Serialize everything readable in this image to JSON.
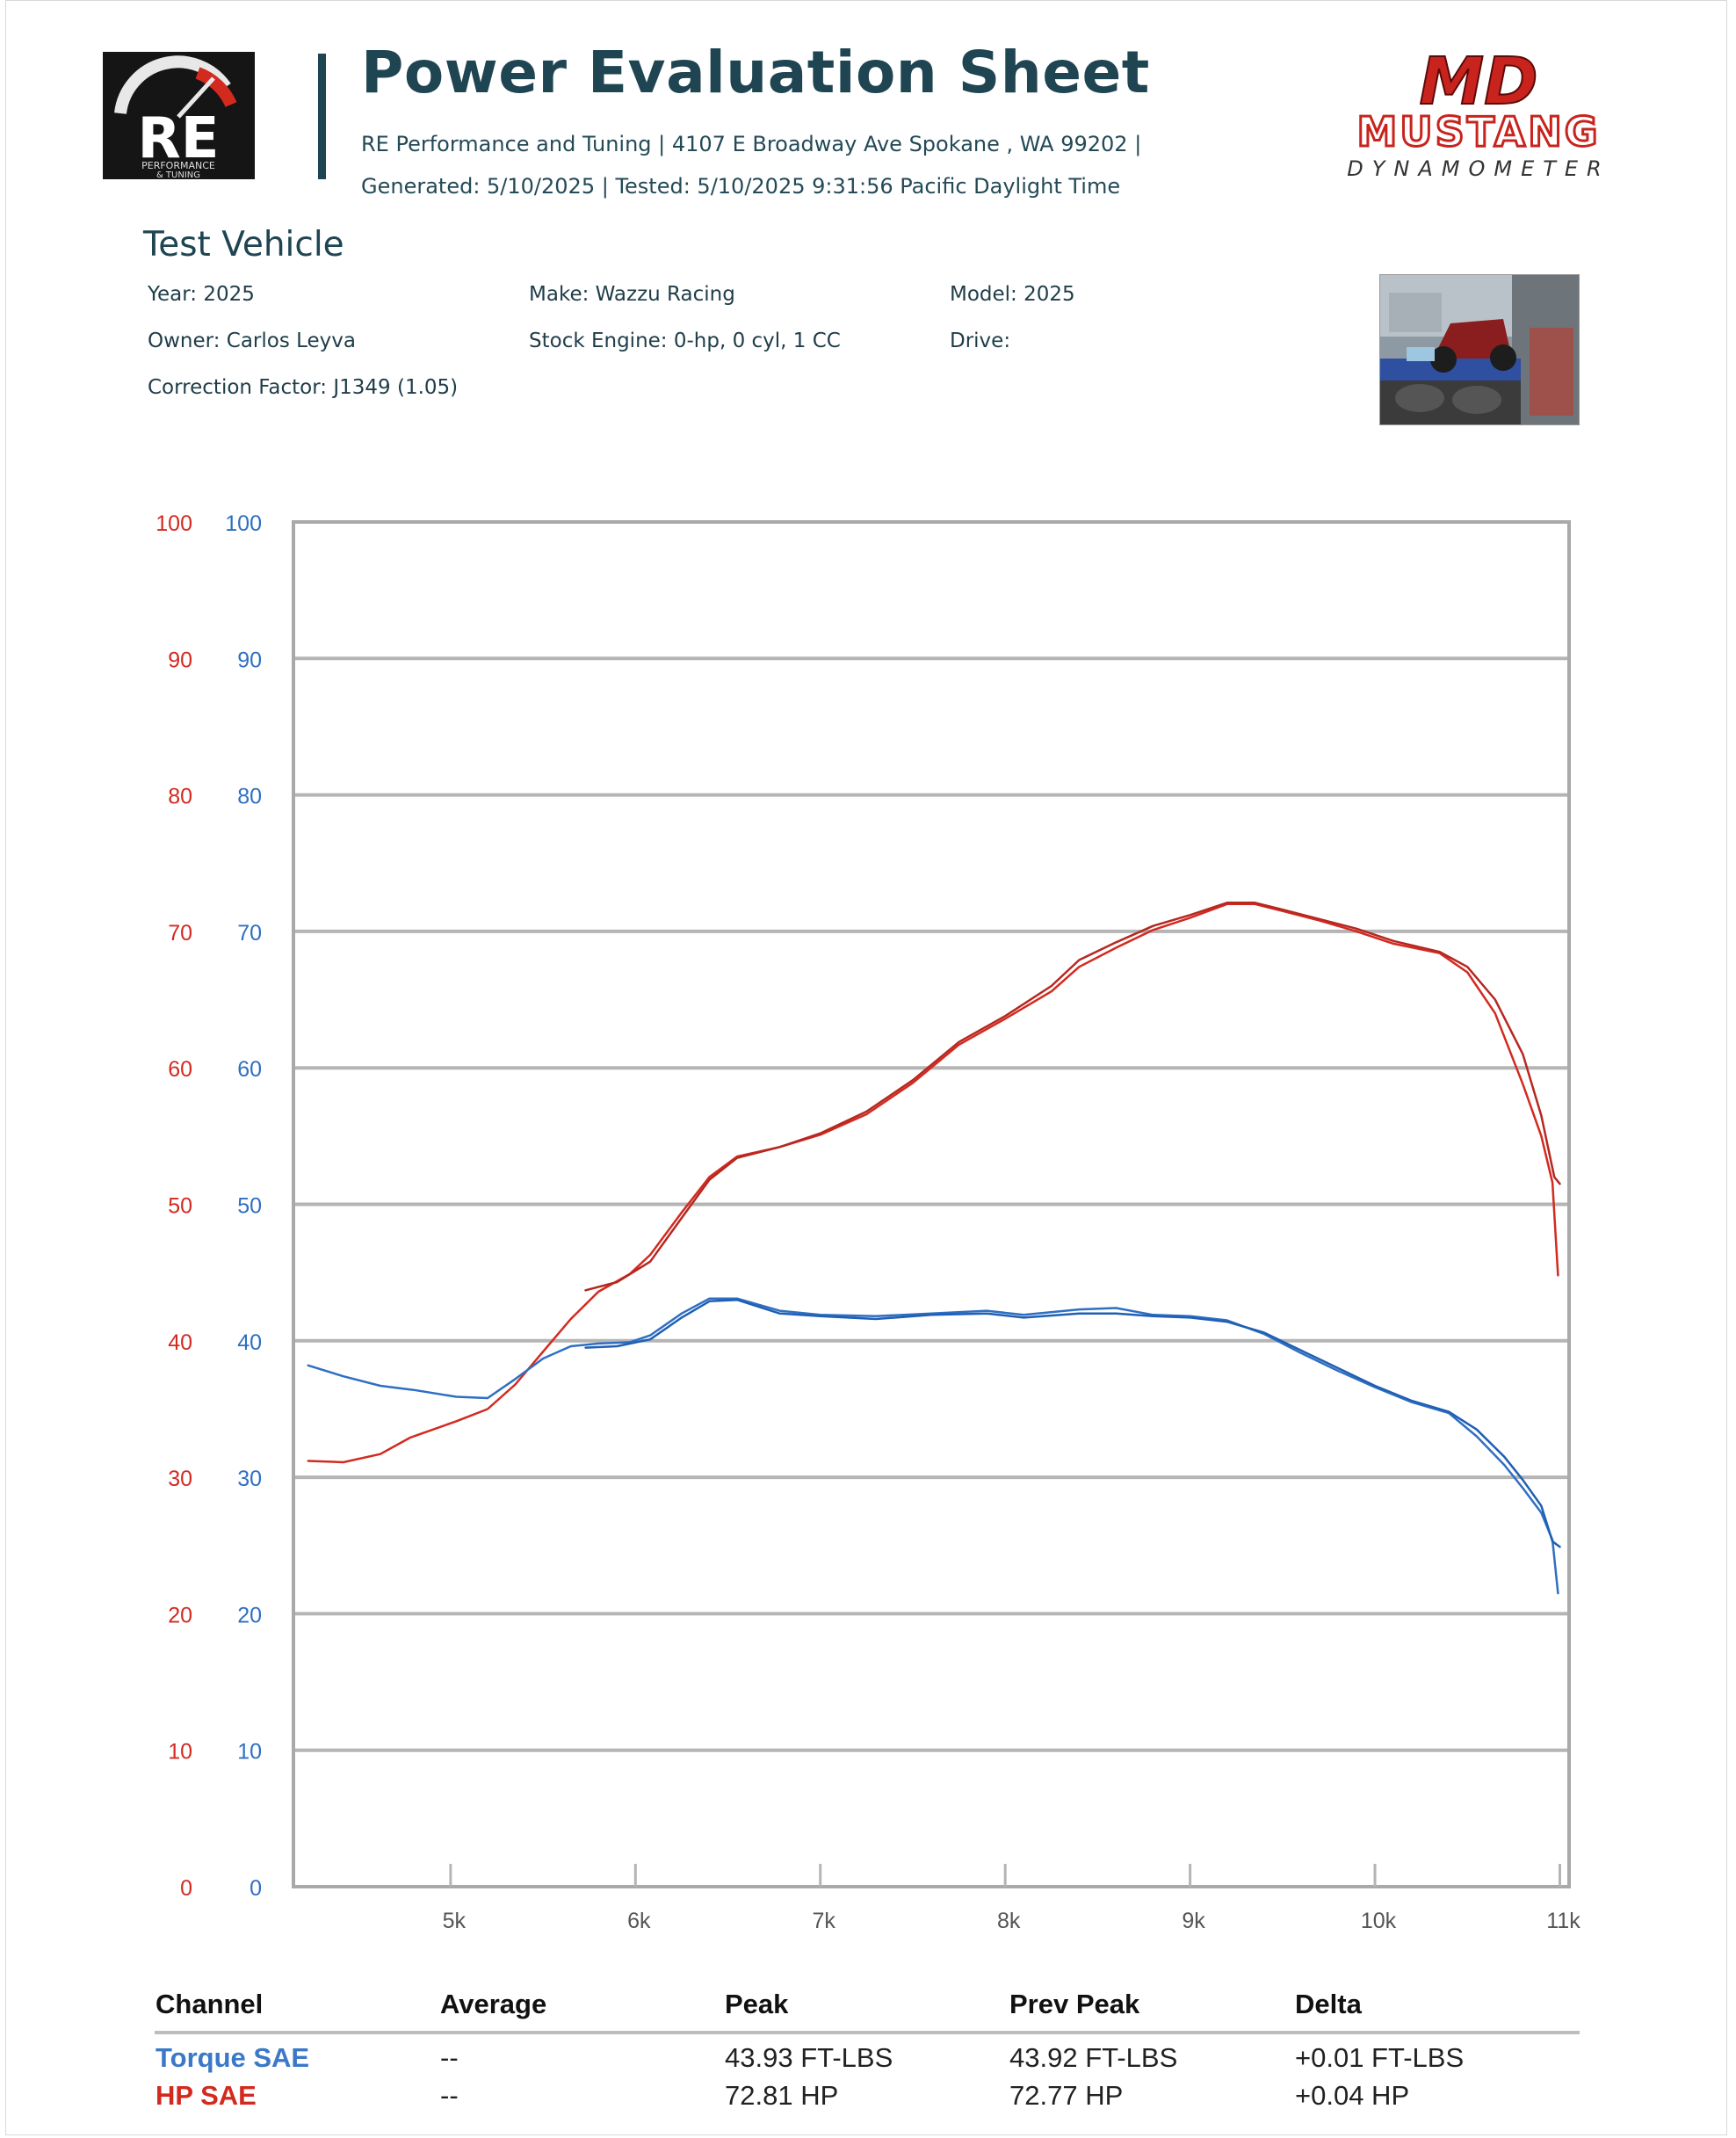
{
  "header": {
    "title": "Power Evaluation Sheet",
    "subtitle": "RE Performance and Tuning | 4107 E Broadway Ave Spokane , WA 99202 | Generated: 5/10/2025 | Tested: 5/10/2025 9:31:56 Pacific Daylight Time",
    "re_logo": {
      "text": "RE",
      "tagline_1": "PERFORMANCE",
      "tagline_2": "& TUNING",
      "icon": "gauge-icon"
    },
    "dyno_logo": {
      "mark": "MD",
      "name": "MUSTANG",
      "sub": "DYNAMOMETER"
    }
  },
  "vehicle": {
    "section_title": "Test Vehicle",
    "year": "Year: 2025",
    "make": "Make: Wazzu Racing",
    "model": "Model: 2025",
    "owner": "Owner: Carlos Leyva",
    "engine": "Stock Engine: 0-hp, 0 cyl, 1 CC",
    "drive": "Drive:",
    "correction": "Correction Factor: J1349 (1.05)",
    "photo_icon": "race-car-on-dyno-photo"
  },
  "colors": {
    "hp": "#d32a20",
    "torque": "#2f6fc2",
    "title": "#1f4552",
    "grid": "#b5b5b5"
  },
  "chart_data": {
    "type": "line",
    "title": "",
    "xlabel": "",
    "ylabel": "",
    "xlim": [
      4150,
      11050
    ],
    "ylim": [
      0,
      100
    ],
    "grid": true,
    "x_ticks": [
      5000,
      6000,
      7000,
      8000,
      9000,
      10000,
      11000
    ],
    "x_tick_labels": [
      "5k",
      "6k",
      "7k",
      "8k",
      "9k",
      "10k",
      "11k"
    ],
    "y_ticks_left_hp": [
      "0",
      "10",
      "20",
      "30",
      "40",
      "50",
      "60",
      "70",
      "80",
      "90",
      "100"
    ],
    "y_ticks_left_torque": [
      "0",
      "10",
      "20",
      "30",
      "40",
      "50",
      "60",
      "70",
      "80",
      "90",
      "100"
    ],
    "series": [
      {
        "name": "HP SAE",
        "color": "#d32a20",
        "x": [
          4230,
          4420,
          4620,
          4780,
          5030,
          5200,
          5350,
          5500,
          5650,
          5800,
          5970,
          6080,
          6250,
          6400,
          6550,
          6780,
          7000,
          7250,
          7500,
          7750,
          8000,
          8250,
          8400,
          8600,
          8800,
          9000,
          9200,
          9350,
          9500,
          9700,
          9900,
          10100,
          10350,
          10500,
          10650,
          10800,
          10900,
          10960,
          10990
        ],
        "values": [
          31.2,
          31.1,
          31.7,
          32.9,
          34.1,
          35.0,
          36.8,
          39.2,
          41.6,
          43.6,
          44.9,
          46.3,
          49.4,
          52.0,
          53.5,
          54.2,
          55.1,
          56.6,
          58.9,
          61.7,
          63.6,
          65.6,
          67.4,
          68.8,
          70.1,
          71.0,
          72.0,
          72.0,
          71.5,
          70.8,
          70.0,
          69.1,
          68.4,
          67.0,
          64.0,
          58.8,
          55.0,
          51.6,
          44.8
        ]
      },
      {
        "name": "HP SAE (prev)",
        "color": "#b52820",
        "x": [
          5730,
          5900,
          6080,
          6250,
          6400,
          6550,
          6780,
          7000,
          7250,
          7500,
          7750,
          8000,
          8250,
          8400,
          8600,
          8800,
          9000,
          9200,
          9350,
          9500,
          9700,
          9900,
          10100,
          10350,
          10500,
          10650,
          10800,
          10900,
          10970,
          11000
        ],
        "values": [
          43.7,
          44.3,
          45.8,
          49.0,
          51.8,
          53.4,
          54.2,
          55.2,
          56.8,
          59.1,
          61.9,
          63.8,
          66.0,
          67.9,
          69.2,
          70.4,
          71.2,
          72.1,
          72.1,
          71.6,
          70.9,
          70.2,
          69.3,
          68.5,
          67.4,
          65.0,
          61.0,
          56.5,
          52.0,
          51.5
        ]
      },
      {
        "name": "Torque SAE",
        "color": "#2f6fc2",
        "x": [
          4230,
          4420,
          4620,
          4800,
          5030,
          5200,
          5350,
          5500,
          5650,
          5800,
          5970,
          6080,
          6250,
          6400,
          6550,
          6780,
          7000,
          7300,
          7600,
          7900,
          8100,
          8400,
          8600,
          8800,
          9000,
          9200,
          9400,
          9600,
          9800,
          10000,
          10200,
          10400,
          10550,
          10700,
          10800,
          10900,
          10960,
          10990
        ],
        "values": [
          38.2,
          37.4,
          36.7,
          36.4,
          35.9,
          35.8,
          37.2,
          38.7,
          39.6,
          39.8,
          39.9,
          40.4,
          42.0,
          43.1,
          43.1,
          42.2,
          41.9,
          41.8,
          42.0,
          42.2,
          41.9,
          42.3,
          42.4,
          41.9,
          41.8,
          41.5,
          40.5,
          39.1,
          37.8,
          36.6,
          35.5,
          34.7,
          33.0,
          30.9,
          29.2,
          27.4,
          25.4,
          21.5
        ]
      },
      {
        "name": "Torque SAE (prev)",
        "color": "#1f5fb4",
        "x": [
          5730,
          5900,
          6080,
          6250,
          6400,
          6550,
          6780,
          7000,
          7300,
          7600,
          7900,
          8100,
          8400,
          8600,
          8800,
          9000,
          9200,
          9400,
          9600,
          9800,
          10000,
          10200,
          10400,
          10550,
          10700,
          10800,
          10900,
          10960,
          11000
        ],
        "values": [
          39.5,
          39.6,
          40.1,
          41.7,
          42.9,
          43.0,
          42.0,
          41.8,
          41.6,
          41.9,
          42.0,
          41.7,
          42.0,
          42.0,
          41.8,
          41.7,
          41.4,
          40.6,
          39.3,
          38.0,
          36.7,
          35.6,
          34.8,
          33.5,
          31.5,
          29.8,
          27.9,
          25.3,
          24.9
        ]
      }
    ]
  },
  "table": {
    "headers": [
      "Channel",
      "Average",
      "Peak",
      "Prev Peak",
      "Delta"
    ],
    "rows": [
      {
        "channel": "Torque SAE",
        "average": "--",
        "peak": "43.93 FT-LBS",
        "prev_peak": "43.92 FT-LBS",
        "delta": "+0.01 FT-LBS"
      },
      {
        "channel": "HP SAE",
        "average": "--",
        "peak": "72.81 HP",
        "prev_peak": "72.77 HP",
        "delta": "+0.04 HP"
      }
    ]
  }
}
